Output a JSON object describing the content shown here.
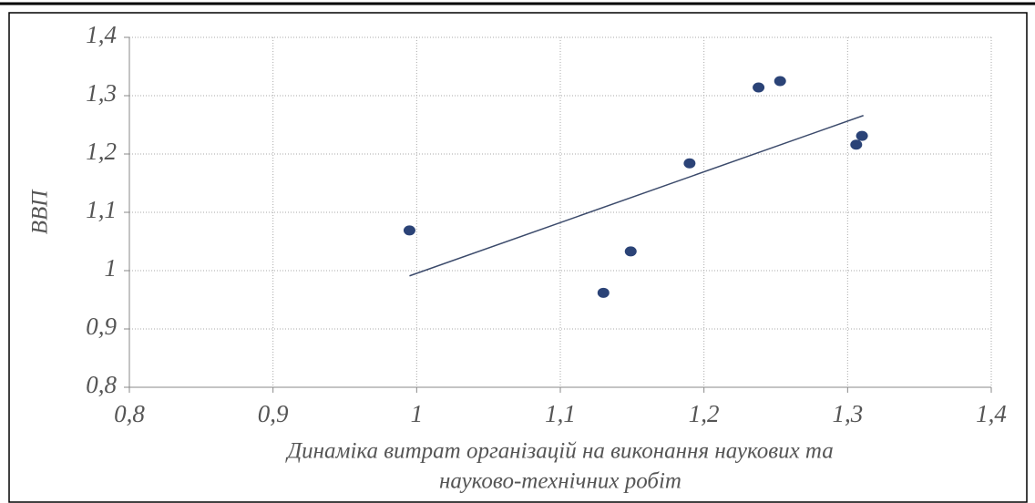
{
  "chart_data": {
    "type": "scatter",
    "ylabel": "ВВП",
    "xlabel": [
      "Динаміка витрат організацій на виконання наукових та",
      "науково-технічних робіт"
    ],
    "x": [
      0.995,
      1.13,
      1.149,
      1.19,
      1.238,
      1.253,
      1.306,
      1.31
    ],
    "series": [
      {
        "color": "#2b4377",
        "values": [
          1.069,
          0.962,
          1.033,
          1.184,
          1.314,
          1.325,
          1.216,
          1.231
        ]
      }
    ],
    "trendline": {
      "color": "#3b4a6b",
      "x": [
        0.995,
        1.311
      ],
      "y": [
        0.991,
        1.266
      ]
    },
    "xlim": [
      0.8,
      1.4
    ],
    "xticks": [
      {
        "value": 0.8,
        "label": "0,8"
      },
      {
        "value": 0.9,
        "label": "0,9"
      },
      1,
      {
        "value": 1.1,
        "label": "1,1"
      },
      {
        "value": 1.2,
        "label": "1,2"
      },
      {
        "value": 1.3,
        "label": "1,3"
      },
      {
        "value": 1.4,
        "label": "1,4"
      }
    ],
    "ylim": [
      0.8,
      1.4
    ],
    "yticks": [
      {
        "value": 0.8,
        "label": "0,8"
      },
      {
        "value": 0.9,
        "label": "0,9"
      },
      1,
      {
        "value": 1.1,
        "label": "1,1"
      },
      {
        "value": 1.2,
        "label": "1,2"
      },
      {
        "value": 1.3,
        "label": "1,3"
      },
      {
        "value": 1.4,
        "label": "1,4"
      }
    ],
    "grid": true
  }
}
